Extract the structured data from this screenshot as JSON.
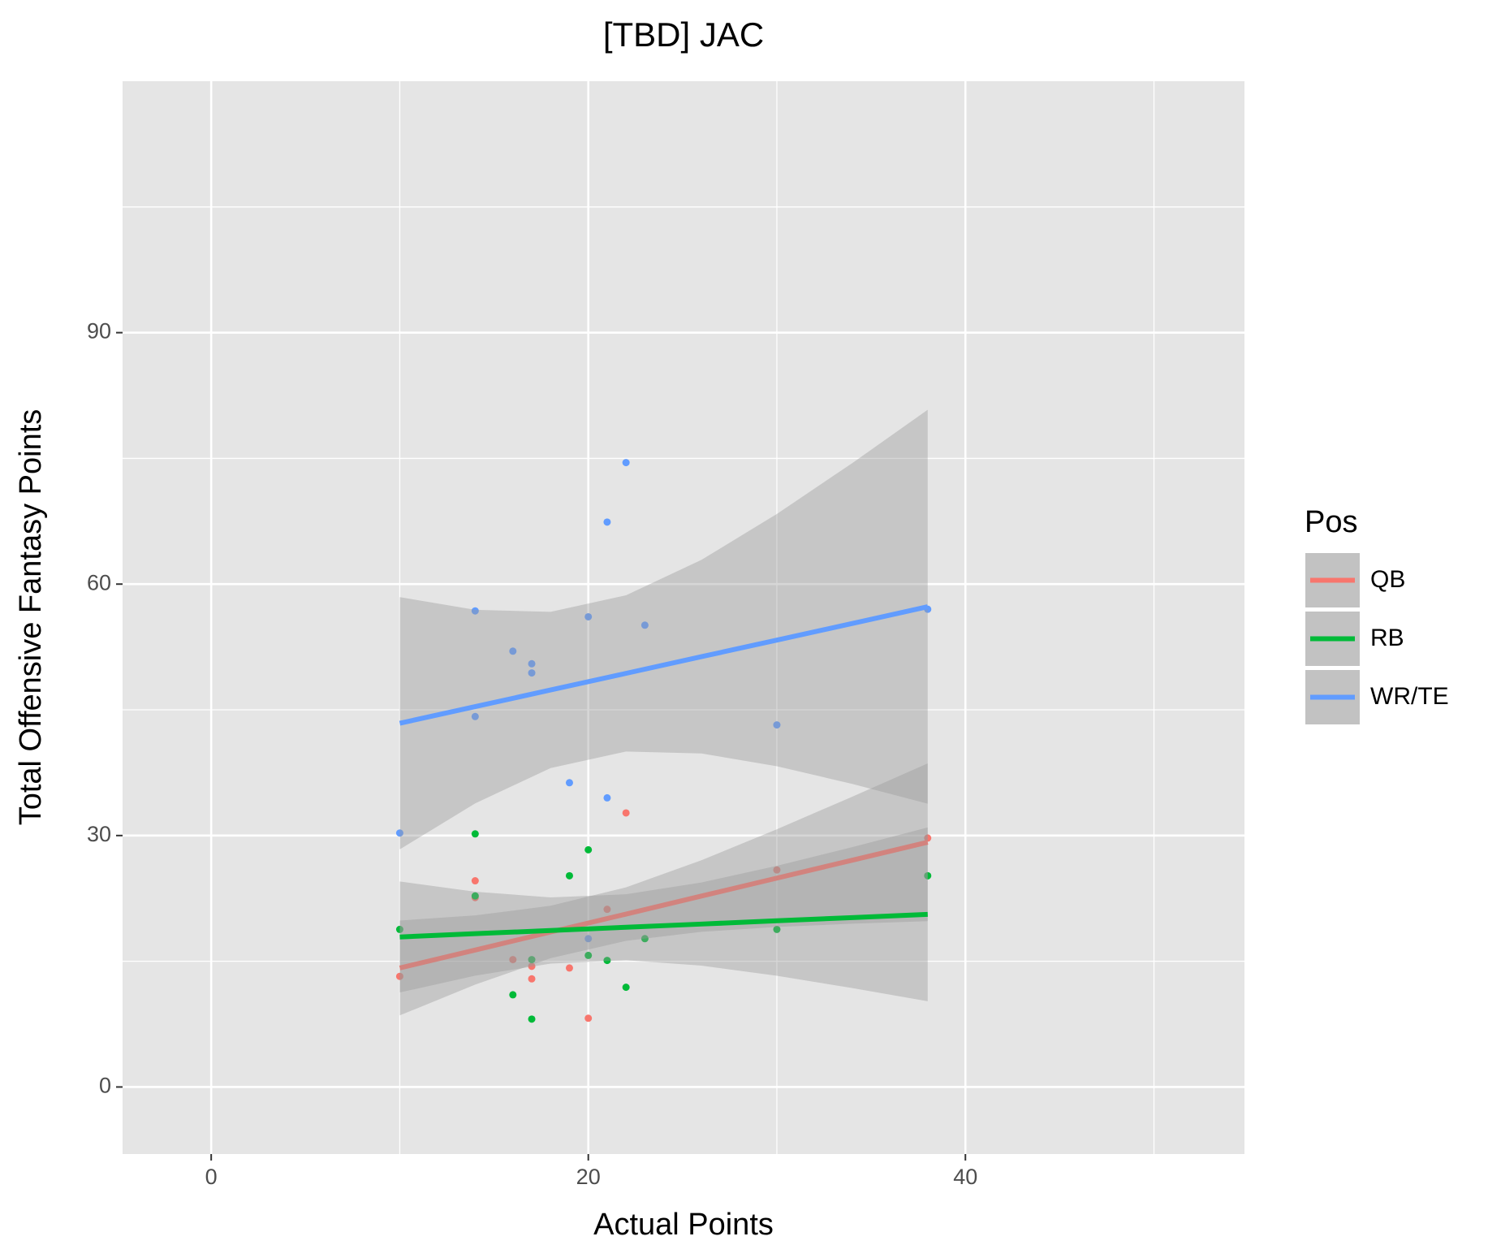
{
  "chart_data": {
    "type": "scatter",
    "title": "[TBD] JAC",
    "x_label": "Actual Points",
    "y_label": "Total Offensive Fantasy Points",
    "legend_title": "Pos",
    "legend_position": "right",
    "grid": true,
    "background": "#e5e5e5",
    "xlim": [
      -4.7,
      54.8
    ],
    "ylim": [
      -8,
      120
    ],
    "xticks": [
      0,
      20,
      40
    ],
    "yticks": [
      0,
      30,
      60,
      90
    ],
    "minor_xticks": [
      10,
      30,
      50
    ],
    "minor_yticks": [
      15,
      45,
      75,
      105
    ],
    "series": [
      {
        "name": "QB",
        "color": "#F8766D",
        "x": [
          10,
          14,
          14,
          16,
          17,
          17,
          19,
          20,
          21,
          22,
          30,
          38
        ],
        "values": [
          13.2,
          24.6,
          22.6,
          15.2,
          14.4,
          12.9,
          14.2,
          8.2,
          21.2,
          32.7,
          25.9,
          29.7
        ],
        "fit": {
          "x": [
            10,
            14,
            18,
            22,
            26,
            30,
            34,
            38
          ],
          "values": [
            14.2,
            16.34,
            18.49,
            20.63,
            22.78,
            24.92,
            27.06,
            29.2
          ],
          "lower": [
            8.54,
            12.21,
            15.36,
            17.44,
            18.51,
            19.09,
            19.48,
            19.79
          ],
          "upper": [
            19.86,
            20.47,
            21.62,
            23.82,
            27.05,
            30.75,
            34.64,
            38.61
          ]
        }
      },
      {
        "name": "RB",
        "color": "#00BA38",
        "x": [
          10,
          14,
          14,
          16,
          17,
          17,
          19,
          20,
          20,
          21,
          22,
          23,
          30,
          38
        ],
        "values": [
          18.8,
          30.2,
          22.8,
          11.0,
          15.2,
          8.1,
          25.2,
          28.3,
          15.7,
          15.1,
          11.9,
          17.7,
          18.8,
          25.2
        ],
        "fit": {
          "x": [
            10,
            14,
            18,
            22,
            26,
            30,
            34,
            38
          ],
          "values": [
            17.9,
            18.29,
            18.67,
            19.06,
            19.44,
            19.83,
            20.21,
            20.6
          ],
          "lower": [
            11.28,
            13.28,
            14.72,
            15.13,
            14.48,
            13.27,
            11.8,
            10.23
          ],
          "upper": [
            24.52,
            23.3,
            22.62,
            22.99,
            24.4,
            26.39,
            28.62,
            30.97
          ]
        }
      },
      {
        "name": "WR/TE",
        "color": "#619CFF",
        "x": [
          10,
          14,
          14,
          16,
          17,
          17,
          20,
          23,
          21,
          22,
          19,
          21,
          30,
          38,
          20
        ],
        "values": [
          30.3,
          56.8,
          44.2,
          52.0,
          50.5,
          49.4,
          56.1,
          55.1,
          67.4,
          74.5,
          36.3,
          34.5,
          43.2,
          57.0,
          17.7
        ],
        "fit": {
          "x": [
            10,
            14,
            18,
            22,
            26,
            30,
            34,
            38
          ],
          "values": [
            43.4,
            45.38,
            47.37,
            49.35,
            51.34,
            53.32,
            55.3,
            57.3
          ],
          "lower": [
            28.35,
            33.83,
            38.05,
            40.03,
            39.79,
            38.27,
            36.16,
            33.8
          ],
          "upper": [
            58.45,
            56.93,
            56.69,
            58.67,
            62.89,
            68.37,
            74.44,
            80.8
          ]
        }
      }
    ]
  }
}
